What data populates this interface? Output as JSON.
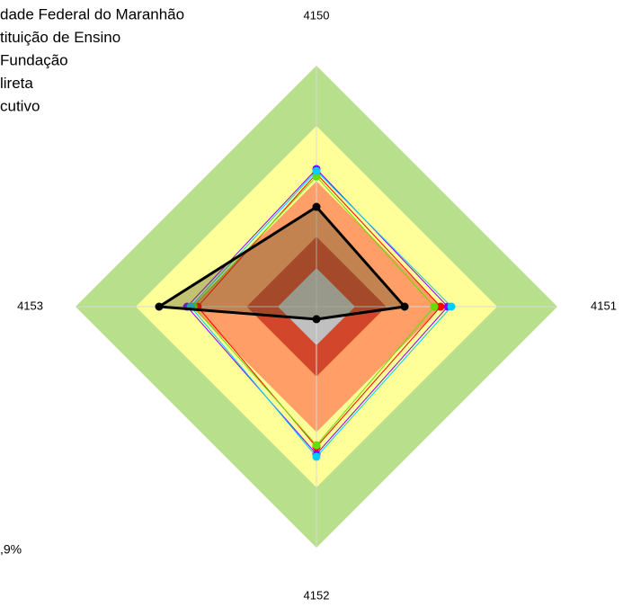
{
  "chart_data": {
    "type": "radar",
    "categories": [
      "4150",
      "4151",
      "4152",
      "4153"
    ],
    "rlim": [
      0,
      100
    ],
    "bands": [
      {
        "value": 100,
        "color": "#b8e08c"
      },
      {
        "value": 75,
        "color": "#ffff99"
      },
      {
        "value": 52,
        "color": "#ff9e66"
      },
      {
        "value": 29,
        "color": "#d2472b"
      },
      {
        "value": 16,
        "color": "#c0c0c0"
      }
    ],
    "series": [
      {
        "name": "dade Federal do Maranhão",
        "color": "#000000",
        "values": [
          41.4,
          36.6,
          5.2,
          65.3
        ]
      },
      {
        "name": "tituição de Ensino",
        "color": "#8000ff",
        "values": [
          57.1,
          54.5,
          61.2,
          53.7
        ]
      },
      {
        "name": "Fundação",
        "color": "#ff0000",
        "values": [
          55.2,
          51.5,
          58.2,
          49.3
        ]
      },
      {
        "name": "lireta",
        "color": "#66dd00",
        "values": [
          54,
          48.9,
          57.5,
          51
        ]
      },
      {
        "name": "cutivo",
        "color": "#00ccff",
        "values": [
          56.3,
          56,
          62.3,
          52.2
        ]
      }
    ],
    "note": ",9%"
  }
}
